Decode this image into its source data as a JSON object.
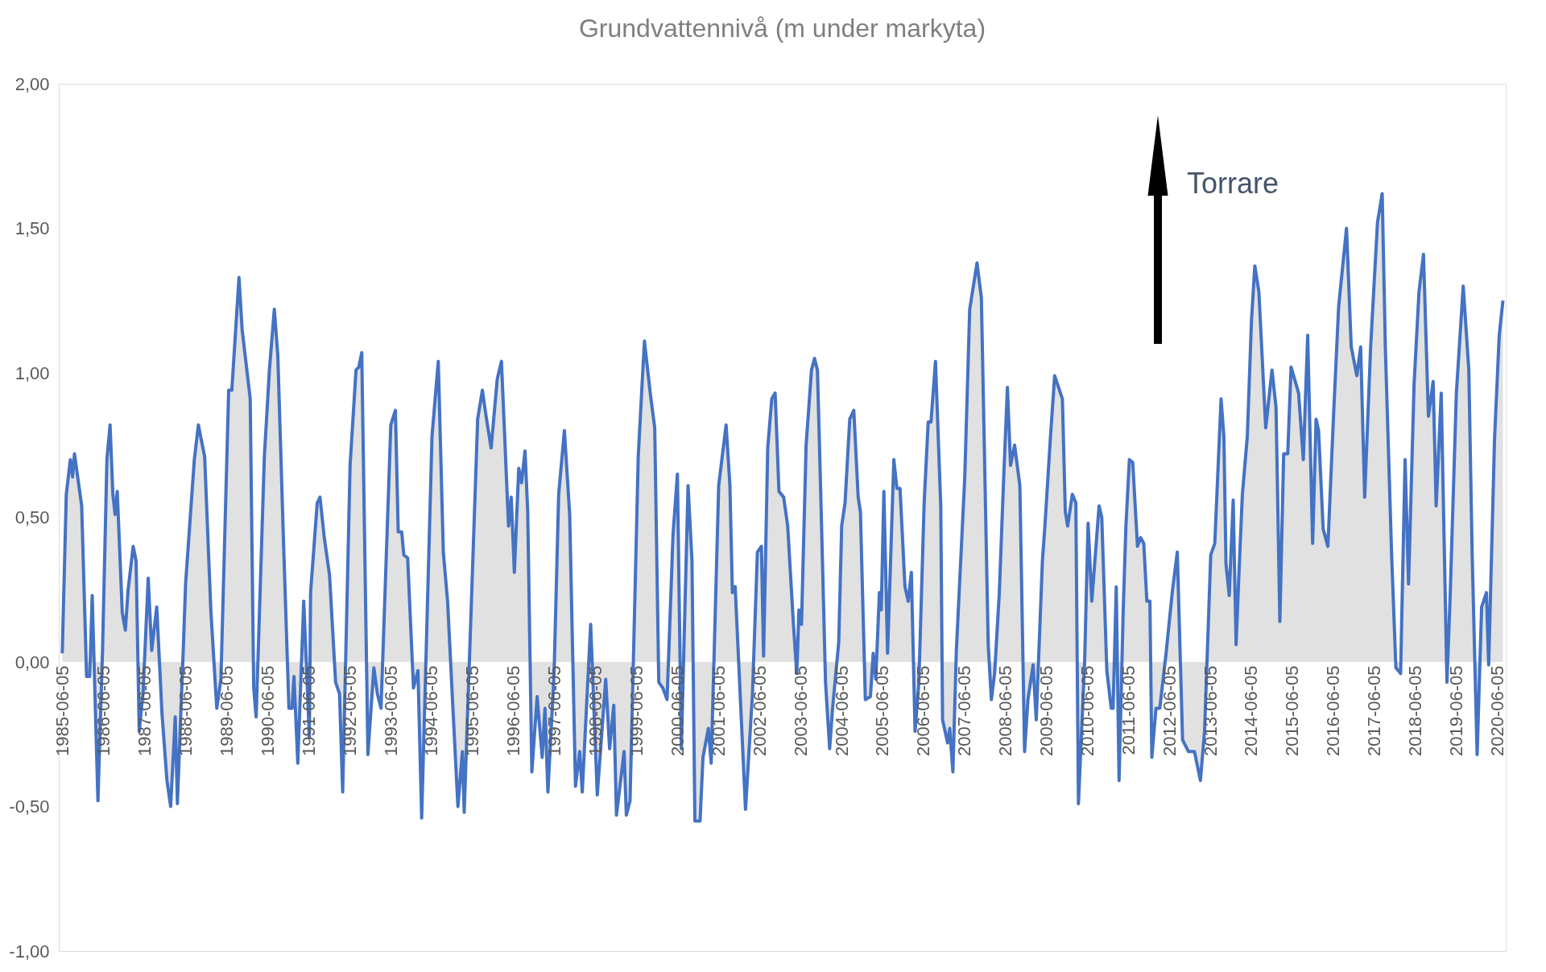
{
  "chart_data": {
    "type": "area",
    "title": "Grundvattennivå (m under markyta)",
    "x": [
      "1985-06-01",
      "1985-07-07",
      "1985-08-12",
      "1985-09-01",
      "1985-09-18",
      "1985-11-21",
      "1986-01-04",
      "1986-02-01",
      "1986-02-23",
      "1986-04-15",
      "1986-05-26",
      "1986-07-04",
      "1986-08-01",
      "1986-08-26",
      "1986-09-15",
      "1986-10-04",
      "1986-11-18",
      "1986-12-15",
      "1987-01-09",
      "1987-02-23",
      "1987-03-21",
      "1987-04-18",
      "1987-05-23",
      "1987-07-07",
      "1987-08-07",
      "1987-09-21",
      "1987-11-07",
      "1987-12-21",
      "1988-01-23",
      "1988-03-04",
      "1988-03-23",
      "1988-05-15",
      "1988-06-04",
      "1988-08-21",
      "1988-09-26",
      "1988-11-21",
      "1989-01-15",
      "1989-03-09",
      "1989-04-15",
      "1989-06-23",
      "1989-07-21",
      "1989-09-23",
      "1989-10-21",
      "1990-01-01",
      "1990-02-01",
      "1990-02-23",
      "1990-05-07",
      "1990-06-21",
      "1990-08-04",
      "1990-09-04",
      "1990-10-26",
      "1990-12-12",
      "1991-01-09",
      "1991-01-26",
      "1991-03-01",
      "1991-04-23",
      "1991-06-12",
      "1991-06-23",
      "1991-08-21",
      "1991-09-15",
      "1991-10-23",
      "1991-12-09",
      "1992-02-01",
      "1992-03-07",
      "1992-04-04",
      "1992-06-09",
      "1992-08-01",
      "1992-08-26",
      "1992-09-21",
      "1992-11-15",
      "1993-01-07",
      "1993-02-07",
      "1993-03-12",
      "1993-06-07",
      "1993-07-18",
      "1993-08-12",
      "1993-09-12",
      "1993-10-01",
      "1993-11-04",
      "1993-12-26",
      "1994-02-04",
      "1994-03-09",
      "1994-06-09",
      "1994-08-04",
      "1994-09-18",
      "1994-10-26",
      "1994-12-15",
      "1995-01-26",
      "1995-03-07",
      "1995-03-23",
      "1995-07-21",
      "1995-09-01",
      "1995-10-04",
      "1995-11-18",
      "1996-01-12",
      "1996-02-18",
      "1996-04-21",
      "1996-05-15",
      "1996-06-12",
      "1996-07-21",
      "1996-08-15",
      "1996-09-15",
      "1996-10-09",
      "1996-11-15",
      "1997-01-01",
      "1997-02-15",
      "1997-03-12",
      "1997-04-07",
      "1997-06-01",
      "1997-07-12",
      "1997-09-01",
      "1997-10-18",
      "1997-12-09",
      "1998-01-15",
      "1998-02-07",
      "1998-04-23",
      "1998-06-21",
      "1998-09-04",
      "1998-10-09",
      "1998-11-15",
      "1998-12-09",
      "1999-02-15",
      "1999-03-07",
      "1999-04-09",
      "1999-06-21",
      "1999-08-15",
      "1999-10-09",
      "1999-11-15",
      "1999-12-21",
      "2000-01-26",
      "2000-03-04",
      "2000-04-26",
      "2000-06-04",
      "2000-07-09",
      "2000-09-07",
      "2000-10-12",
      "2000-11-07",
      "2000-12-23",
      "2001-01-18",
      "2001-03-07",
      "2001-04-01",
      "2001-06-07",
      "2001-08-12",
      "2001-09-15",
      "2001-10-07",
      "2001-11-01",
      "2002-02-01",
      "2002-04-04",
      "2002-05-18",
      "2002-06-23",
      "2002-07-12",
      "2002-08-18",
      "2002-09-23",
      "2002-10-23",
      "2002-11-26",
      "2003-01-07",
      "2003-02-12",
      "2003-04-04",
      "2003-05-04",
      "2003-05-23",
      "2003-06-15",
      "2003-07-26",
      "2003-09-12",
      "2003-10-09",
      "2003-11-04",
      "2003-12-01",
      "2004-01-15",
      "2004-02-21",
      "2004-03-18",
      "2004-05-12",
      "2004-06-07",
      "2004-07-07",
      "2004-08-18",
      "2004-09-23",
      "2004-11-01",
      "2004-11-21",
      "2005-01-04",
      "2005-02-18",
      "2005-03-15",
      "2005-04-07",
      "2005-05-09",
      "2005-05-26",
      "2005-06-18",
      "2005-07-21",
      "2005-09-15",
      "2005-10-12",
      "2005-11-09",
      "2005-12-23",
      "2006-01-21",
      "2006-02-18",
      "2006-03-23",
      "2006-04-26",
      "2006-06-12",
      "2006-07-18",
      "2006-08-12",
      "2006-09-21",
      "2006-11-07",
      "2006-11-23",
      "2007-01-07",
      "2007-01-26",
      "2007-02-23",
      "2007-03-26",
      "2007-06-09",
      "2007-07-23",
      "2007-09-26",
      "2007-11-04",
      "2008-01-04",
      "2008-02-01",
      "2008-03-01",
      "2008-04-12",
      "2008-05-18",
      "2008-06-23",
      "2008-07-21",
      "2008-08-26",
      "2008-10-12",
      "2008-11-23",
      "2008-12-23",
      "2009-02-07",
      "2009-03-07",
      "2009-05-01",
      "2009-05-23",
      "2009-07-12",
      "2009-08-18",
      "2009-10-26",
      "2009-11-21",
      "2009-12-12",
      "2010-01-23",
      "2010-02-23",
      "2010-03-18",
      "2010-05-12",
      "2010-06-12",
      "2010-07-15",
      "2010-09-18",
      "2010-10-12",
      "2010-11-26",
      "2011-01-04",
      "2011-01-21",
      "2011-02-18",
      "2011-03-15",
      "2011-04-21",
      "2011-05-15",
      "2011-06-15",
      "2011-07-15",
      "2011-08-26",
      "2011-09-23",
      "2011-10-21",
      "2011-11-18",
      "2011-12-15",
      "2012-01-01",
      "2012-02-07",
      "2012-03-12",
      "2012-05-07",
      "2012-07-01",
      "2012-08-15",
      "2012-10-01",
      "2012-11-23",
      "2013-01-15",
      "2013-03-09",
      "2013-04-15",
      "2013-06-09",
      "2013-07-15",
      "2013-09-09",
      "2013-10-04",
      "2013-10-23",
      "2013-11-21",
      "2013-12-26",
      "2014-01-21",
      "2014-02-18",
      "2014-03-18",
      "2014-05-01",
      "2014-06-07",
      "2014-07-07",
      "2014-08-12",
      "2014-10-12",
      "2014-12-07",
      "2015-01-12",
      "2015-02-15",
      "2015-03-21",
      "2015-04-26",
      "2015-05-26",
      "2015-08-01",
      "2015-09-12",
      "2015-10-21",
      "2015-12-04",
      "2016-01-04",
      "2016-01-26",
      "2016-03-07",
      "2016-04-18",
      "2016-06-07",
      "2016-07-23",
      "2016-10-01",
      "2016-11-12",
      "2017-01-01",
      "2017-02-04",
      "2017-03-12",
      "2017-05-04",
      "2017-07-04",
      "2017-08-15",
      "2017-09-12",
      "2017-11-07",
      "2017-12-15",
      "2018-01-26",
      "2018-03-07",
      "2018-04-07",
      "2018-05-26",
      "2018-07-09",
      "2018-08-18",
      "2018-10-01",
      "2018-11-12",
      "2018-12-09",
      "2019-01-23",
      "2019-03-15",
      "2019-04-12",
      "2019-06-07",
      "2019-08-07",
      "2019-09-26",
      "2019-10-26",
      "2019-12-09",
      "2020-01-18",
      "2020-03-01",
      "2020-03-21",
      "2020-05-12",
      "2020-06-23",
      "2020-07-26"
    ],
    "series": [
      {
        "color": "#4472c4",
        "values": [
          0.03,
          0.58,
          0.7,
          0.64,
          0.72,
          0.54,
          -0.05,
          -0.05,
          0.23,
          -0.48,
          0.04,
          0.7,
          0.82,
          0.58,
          0.51,
          0.59,
          0.17,
          0.11,
          0.25,
          0.4,
          0.35,
          -0.24,
          -0.1,
          0.29,
          0.04,
          0.19,
          -0.18,
          -0.41,
          -0.5,
          -0.19,
          -0.49,
          0.05,
          0.27,
          0.7,
          0.82,
          0.71,
          0.18,
          -0.16,
          -0.06,
          0.94,
          0.94,
          1.33,
          1.15,
          0.91,
          -0.09,
          -0.19,
          0.71,
          1.01,
          1.22,
          1.06,
          0.4,
          -0.16,
          -0.16,
          -0.05,
          -0.35,
          0.21,
          -0.26,
          0.24,
          0.55,
          0.57,
          0.43,
          0.3,
          -0.07,
          -0.11,
          -0.45,
          0.68,
          1.01,
          1.02,
          1.07,
          -0.32,
          -0.02,
          -0.11,
          -0.16,
          0.82,
          0.87,
          0.45,
          0.45,
          0.37,
          0.36,
          -0.09,
          -0.03,
          -0.54,
          0.78,
          1.04,
          0.38,
          0.21,
          -0.18,
          -0.5,
          -0.31,
          -0.52,
          0.84,
          0.94,
          0.85,
          0.74,
          0.98,
          1.04,
          0.47,
          0.57,
          0.31,
          0.67,
          0.62,
          0.73,
          0.52,
          -0.38,
          -0.12,
          -0.33,
          -0.16,
          -0.45,
          -0.04,
          0.58,
          0.8,
          0.51,
          -0.43,
          -0.31,
          -0.45,
          0.13,
          -0.46,
          -0.06,
          -0.3,
          -0.15,
          -0.53,
          -0.31,
          -0.53,
          -0.48,
          0.71,
          1.11,
          0.92,
          0.81,
          -0.07,
          -0.09,
          -0.13,
          0.44,
          0.65,
          -0.3,
          0.61,
          0.35,
          -0.55,
          -0.55,
          -0.33,
          -0.23,
          -0.35,
          0.61,
          0.82,
          0.61,
          0.24,
          0.26,
          -0.51,
          -0.11,
          0.38,
          0.4,
          0.02,
          0.74,
          0.91,
          0.93,
          0.59,
          0.57,
          0.47,
          0.13,
          -0.04,
          0.18,
          0.13,
          0.75,
          1.01,
          1.05,
          1.01,
          0.62,
          -0.07,
          -0.3,
          -0.16,
          0.07,
          0.47,
          0.55,
          0.84,
          0.87,
          0.57,
          0.52,
          -0.13,
          -0.12,
          0.03,
          -0.06,
          0.24,
          0.18,
          0.59,
          0.03,
          0.7,
          0.6,
          0.6,
          0.26,
          0.21,
          0.31,
          -0.24,
          -0.07,
          0.55,
          0.83,
          0.83,
          1.04,
          0.54,
          -0.2,
          -0.28,
          -0.23,
          -0.38,
          0.04,
          0.64,
          1.22,
          1.38,
          1.26,
          0.06,
          -0.13,
          -0.04,
          0.24,
          0.61,
          0.95,
          0.68,
          0.75,
          0.61,
          -0.31,
          -0.13,
          -0.01,
          -0.2,
          0.35,
          0.47,
          0.78,
          0.99,
          0.91,
          0.52,
          0.47,
          0.58,
          0.55,
          -0.49,
          0.0,
          0.48,
          0.21,
          0.54,
          0.5,
          -0.03,
          -0.16,
          -0.16,
          0.26,
          -0.41,
          0.18,
          0.47,
          0.7,
          0.69,
          0.4,
          0.43,
          0.41,
          0.21,
          0.21,
          -0.33,
          -0.16,
          -0.16,
          0.03,
          0.24,
          0.38,
          -0.27,
          -0.31,
          -0.31,
          -0.41,
          -0.24,
          0.37,
          0.41,
          0.91,
          0.78,
          0.34,
          0.23,
          0.56,
          0.06,
          0.33,
          0.58,
          0.78,
          1.18,
          1.37,
          1.28,
          0.81,
          1.01,
          0.88,
          0.14,
          0.72,
          0.72,
          1.02,
          0.93,
          0.7,
          1.13,
          0.41,
          0.84,
          0.8,
          0.46,
          0.4,
          0.85,
          1.23,
          1.5,
          1.09,
          0.99,
          1.09,
          0.57,
          1.09,
          1.52,
          1.62,
          1.09,
          0.37,
          -0.02,
          -0.04,
          0.7,
          0.27,
          0.96,
          1.28,
          1.41,
          0.85,
          0.97,
          0.54,
          0.93,
          -0.07,
          0.22,
          0.93,
          1.3,
          1.01,
          0.37,
          -0.32,
          0.19,
          0.24,
          -0.01,
          0.77,
          1.13,
          1.25
        ]
      }
    ],
    "xlim": [
      "1985-05-01",
      "2020-08-20"
    ],
    "xticks": [
      "1985-06-05",
      "1986-06-05",
      "1987-06-05",
      "1988-06-05",
      "1989-06-05",
      "1990-06-05",
      "1991-06-05",
      "1992-06-05",
      "1993-06-05",
      "1994-06-05",
      "1995-06-05",
      "1996-06-05",
      "1997-06-05",
      "1998-06-05",
      "1999-06-05",
      "2000-06-05",
      "2001-06-05",
      "2002-06-05",
      "2003-06-05",
      "2004-06-05",
      "2005-06-05",
      "2006-06-05",
      "2007-06-05",
      "2008-06-05",
      "2009-06-05",
      "2010-06-05",
      "2011-06-05",
      "2012-06-05",
      "2013-06-05",
      "2014-06-05",
      "2015-06-05",
      "2016-06-05",
      "2017-06-05",
      "2018-06-05",
      "2019-06-05",
      "2020-06-05"
    ],
    "ylim": [
      -1,
      2
    ],
    "yticks": [
      {
        "value": -1,
        "label": "-1,00"
      },
      {
        "value": -0.5,
        "label": "-0,50"
      },
      {
        "value": 0,
        "label": "0,00"
      },
      {
        "value": 0.5,
        "label": "0,50"
      },
      {
        "value": 1,
        "label": "1,00"
      },
      {
        "value": 1.5,
        "label": "1,50"
      },
      {
        "value": 2,
        "label": "2,00"
      }
    ],
    "grid": false,
    "annotations": [
      "Torrare"
    ]
  }
}
